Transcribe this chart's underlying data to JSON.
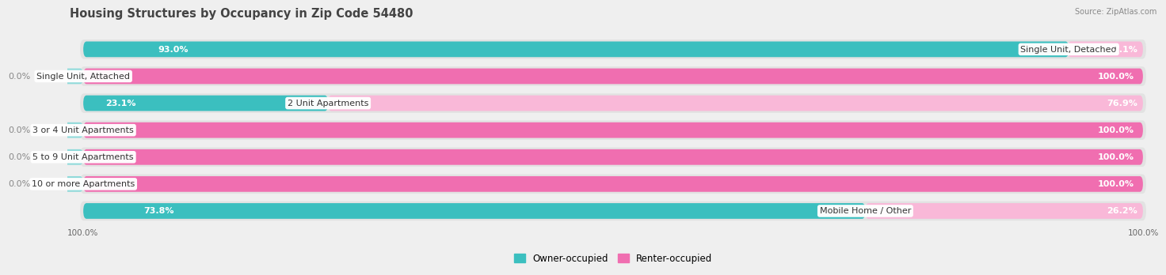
{
  "title": "Housing Structures by Occupancy in Zip Code 54480",
  "source": "Source: ZipAtlas.com",
  "categories": [
    "Single Unit, Detached",
    "Single Unit, Attached",
    "2 Unit Apartments",
    "3 or 4 Unit Apartments",
    "5 to 9 Unit Apartments",
    "10 or more Apartments",
    "Mobile Home / Other"
  ],
  "owner_pct": [
    93.0,
    0.0,
    23.1,
    0.0,
    0.0,
    0.0,
    73.8
  ],
  "renter_pct": [
    7.1,
    100.0,
    76.9,
    100.0,
    100.0,
    100.0,
    26.2
  ],
  "owner_color": "#3BBFBF",
  "renter_color": "#F06EB0",
  "renter_light_color": "#F9B8D8",
  "bg_color": "#EFEFEF",
  "row_bg_color": "#E2E2E2",
  "title_fontsize": 10.5,
  "label_fontsize": 8,
  "pct_fontsize": 8,
  "bar_height": 0.58,
  "legend_labels": [
    "Owner-occupied",
    "Renter-occupied"
  ],
  "bottom_labels": [
    "100.0%",
    "100.0%"
  ]
}
